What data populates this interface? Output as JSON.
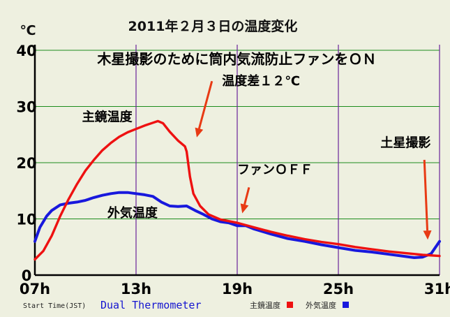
{
  "chart_data": {
    "type": "line",
    "title": "2011年２月３日の温度変化",
    "unit_label": "℃",
    "ylim": [
      0,
      40
    ],
    "y_ticks": [
      "0",
      "10",
      "20",
      "30",
      "40"
    ],
    "xlim": [
      7,
      31
    ],
    "x_ticks": [
      {
        "value": 7,
        "label": "07h"
      },
      {
        "value": 13,
        "label": "13h"
      },
      {
        "value": 19,
        "label": "19h"
      },
      {
        "value": 25,
        "label": "25h"
      },
      {
        "value": 31,
        "label": "31h"
      }
    ],
    "grid": true,
    "series": [
      {
        "name": "主鏡温度",
        "color": "#ee1111",
        "points": [
          [
            7.0,
            2.8
          ],
          [
            7.5,
            4.3
          ],
          [
            8.0,
            7.0
          ],
          [
            8.5,
            10.5
          ],
          [
            9.0,
            13.5
          ],
          [
            9.5,
            16.2
          ],
          [
            10.0,
            18.6
          ],
          [
            10.5,
            20.5
          ],
          [
            11.0,
            22.2
          ],
          [
            11.5,
            23.5
          ],
          [
            12.0,
            24.6
          ],
          [
            12.5,
            25.4
          ],
          [
            13.0,
            26.0
          ],
          [
            13.5,
            26.6
          ],
          [
            14.0,
            27.1
          ],
          [
            14.3,
            27.4
          ],
          [
            14.6,
            27.0
          ],
          [
            15.0,
            25.5
          ],
          [
            15.5,
            23.9
          ],
          [
            15.9,
            22.9
          ],
          [
            16.0,
            22.0
          ],
          [
            16.2,
            17.5
          ],
          [
            16.4,
            14.5
          ],
          [
            16.8,
            12.3
          ],
          [
            17.3,
            10.8
          ],
          [
            18.0,
            9.9
          ],
          [
            19.0,
            9.3
          ],
          [
            20.0,
            8.5
          ],
          [
            21.0,
            7.7
          ],
          [
            22.0,
            7.0
          ],
          [
            23.0,
            6.4
          ],
          [
            24.0,
            5.9
          ],
          [
            25.0,
            5.5
          ],
          [
            26.0,
            5.0
          ],
          [
            27.0,
            4.6
          ],
          [
            28.0,
            4.2
          ],
          [
            29.0,
            3.9
          ],
          [
            30.0,
            3.6
          ],
          [
            31.0,
            3.4
          ]
        ]
      },
      {
        "name": "外気温度",
        "color": "#1818dd",
        "points": [
          [
            7.0,
            6.0
          ],
          [
            7.3,
            8.5
          ],
          [
            7.7,
            10.5
          ],
          [
            8.0,
            11.5
          ],
          [
            8.5,
            12.5
          ],
          [
            9.0,
            12.8
          ],
          [
            9.5,
            13.0
          ],
          [
            10.0,
            13.3
          ],
          [
            10.5,
            13.8
          ],
          [
            11.0,
            14.2
          ],
          [
            11.5,
            14.5
          ],
          [
            12.0,
            14.7
          ],
          [
            12.5,
            14.7
          ],
          [
            13.0,
            14.5
          ],
          [
            13.5,
            14.3
          ],
          [
            14.0,
            14.0
          ],
          [
            14.5,
            13.0
          ],
          [
            15.0,
            12.3
          ],
          [
            15.5,
            12.2
          ],
          [
            16.0,
            12.3
          ],
          [
            16.5,
            11.5
          ],
          [
            17.0,
            10.8
          ],
          [
            17.5,
            10.0
          ],
          [
            18.0,
            9.5
          ],
          [
            18.5,
            9.3
          ],
          [
            19.0,
            8.8
          ],
          [
            19.5,
            8.8
          ],
          [
            20.0,
            8.2
          ],
          [
            21.0,
            7.3
          ],
          [
            22.0,
            6.5
          ],
          [
            23.0,
            6.0
          ],
          [
            24.0,
            5.4
          ],
          [
            25.0,
            4.9
          ],
          [
            26.0,
            4.4
          ],
          [
            27.0,
            4.1
          ],
          [
            28.0,
            3.7
          ],
          [
            29.0,
            3.3
          ],
          [
            29.5,
            3.1
          ],
          [
            30.0,
            3.2
          ],
          [
            30.5,
            3.8
          ],
          [
            31.0,
            6.0
          ]
        ]
      }
    ],
    "annotations": [
      {
        "text": "主鏡温度",
        "x": 9.8,
        "y": 27.4,
        "size": 18
      },
      {
        "text": "外気温度",
        "x": 11.3,
        "y": 10.3,
        "size": 18
      },
      {
        "text": "木星撮影のために筒内気流防止ファンをＯＮ",
        "x": 10.7,
        "y": 37.6,
        "size": 20
      },
      {
        "text": "温度差１２℃",
        "x": 18.1,
        "y": 33.8,
        "size": 18
      },
      {
        "text": "ファンＯＦＦ",
        "x": 19.0,
        "y": 18.0,
        "size": 18
      },
      {
        "text": "土星撮影",
        "x": 27.5,
        "y": 22.8,
        "size": 18
      }
    ],
    "arrows": [
      {
        "from": [
          17.5,
          34.5
        ],
        "to": [
          16.6,
          24.5
        ]
      },
      {
        "from": [
          19.7,
          15.6
        ],
        "to": [
          19.3,
          11.0
        ]
      },
      {
        "from": [
          30.1,
          20.5
        ],
        "to": [
          30.3,
          6.3
        ]
      }
    ]
  },
  "footer": {
    "start_time": "Start Time(JST)",
    "app_name": "Dual Thermometer",
    "legend": [
      {
        "label": "主鏡温度",
        "color": "#ee1111"
      },
      {
        "label": "外気温度",
        "color": "#1818dd"
      }
    ]
  }
}
